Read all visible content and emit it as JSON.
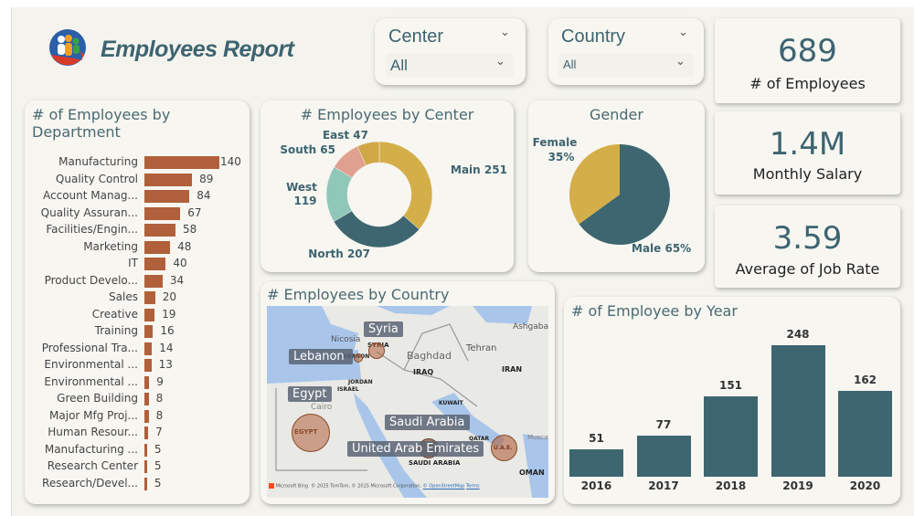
{
  "header": {
    "title": "Employees Report",
    "logo_icon": "people-growth-logo"
  },
  "slicers": [
    {
      "label": "Center",
      "value": "All"
    },
    {
      "label": "Country",
      "value": "All"
    }
  ],
  "kpis": [
    {
      "value": "689",
      "label": "# of Employees"
    },
    {
      "value": "1.4M",
      "label": "Monthly Salary"
    },
    {
      "value": "3.59",
      "label": "Average of Job Rate"
    }
  ],
  "colors": {
    "accent": "#3d6470",
    "bar": "#b0603a",
    "gold": "#d4ae48",
    "mint": "#8fc7b8",
    "salmon": "#e0a090",
    "year_bar": "#3e6670"
  },
  "chart_data": [
    {
      "type": "bar",
      "orientation": "horizontal",
      "title": "# of Employees by Department",
      "categories": [
        "Manufacturing",
        "Quality Control",
        "Account Manag...",
        "Quality Assuran...",
        "Facilities/Engin...",
        "Marketing",
        "IT",
        "Product Develo...",
        "Sales",
        "Creative",
        "Training",
        "Professional Tra...",
        "Environmental ...",
        "Environmental ...",
        "Green Building",
        "Major Mfg Proj...",
        "Human Resour...",
        "Manufacturing ...",
        "Research Center",
        "Research/Devel..."
      ],
      "values": [
        140,
        89,
        84,
        67,
        58,
        48,
        40,
        34,
        20,
        19,
        16,
        14,
        13,
        9,
        8,
        8,
        7,
        5,
        5,
        5
      ]
    },
    {
      "type": "pie",
      "variant": "donut",
      "title": "# Employees by Center",
      "categories": [
        "Main",
        "North",
        "West",
        "South",
        "East"
      ],
      "values": [
        251,
        207,
        119,
        65,
        47
      ],
      "labels": [
        "Main 251",
        "North 207",
        "West 119",
        "South 65",
        "East 47"
      ]
    },
    {
      "type": "pie",
      "title": "Gender",
      "categories": [
        "Male",
        "Female"
      ],
      "values": [
        65,
        35
      ],
      "labels": [
        "Male 65%",
        "Female 35%"
      ]
    },
    {
      "type": "bar",
      "title": "# of Employee by Year",
      "categories": [
        "2016",
        "2017",
        "2018",
        "2019",
        "2020"
      ],
      "values": [
        51,
        77,
        151,
        248,
        162
      ]
    }
  ],
  "map": {
    "title": "# Employees by Country",
    "countries": [
      "Syria",
      "Lebanon",
      "Egypt",
      "Saudi Arabia",
      "United Arab Emirates"
    ],
    "place_labels": [
      "Nicosia",
      "SYRIA",
      "LEBANON",
      "Baghdad",
      "IRAQ",
      "Tehran",
      "IRAN",
      "Ashgabat",
      "JORDAN",
      "ISRAEL",
      "Cairo",
      "EGYPT",
      "KUWAIT",
      "QATAR",
      "U.A.E.",
      "Muscat",
      "SAUDI ARABIA",
      "OMAN"
    ],
    "attribution": "© 2025 TomTom, © 2025 Microsoft Corporation,",
    "osm_link": "© OpenStreetMap",
    "terms": "Terms",
    "bing": "Microsoft Bing"
  }
}
